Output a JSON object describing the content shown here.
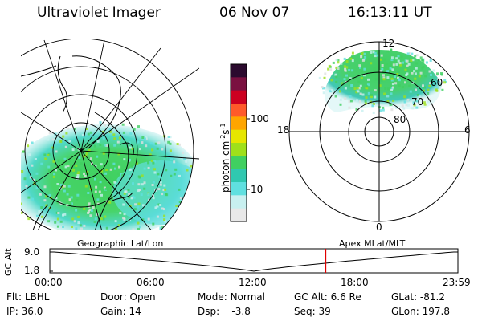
{
  "header": {
    "instrument": "Ultraviolet Imager",
    "date": "06 Nov 07",
    "time": "16:13:11 UT"
  },
  "colorbar": {
    "unit_label": "photon cm",
    "unit_sup1": "-2",
    "unit_mid": "s",
    "unit_sup2": "-1",
    "ticks": [
      "100",
      "10"
    ],
    "colors": [
      "#2b0a2e",
      "#7a1040",
      "#cc0020",
      "#ff5a2a",
      "#ffa500",
      "#e6e600",
      "#9fe01a",
      "#40d060",
      "#30c8b0",
      "#60e0e0",
      "#c8f0f0",
      "#e8e8e8"
    ]
  },
  "polar_plot": {
    "mlt_labels": {
      "top": "12",
      "left": "18",
      "right": "6",
      "bottom": "0"
    },
    "lat_labels": [
      "60",
      "70",
      "80"
    ]
  },
  "timeline": {
    "y_axis_label": "GC Alt",
    "y_ticks": [
      "9.0",
      "1.8"
    ],
    "left_caption": "Geographic Lat/Lon",
    "right_caption": "Apex MLat/MLT",
    "x_ticks": [
      "00:00",
      "06:00",
      "12:00",
      "18:00",
      "23:59"
    ],
    "current_time_fraction": 0.676
  },
  "footer": {
    "row1": [
      {
        "label": "Flt:",
        "value": "LBHL"
      },
      {
        "label": "Door:",
        "value": "Open"
      },
      {
        "label": "Mode:",
        "value": "Normal"
      },
      {
        "label": "GC Alt:",
        "value": "6.6 Re"
      },
      {
        "label": "GLat:",
        "value": "-81.2"
      }
    ],
    "row2": [
      {
        "label": "IP:",
        "value": "36.0"
      },
      {
        "label": "Gain:",
        "value": "14"
      },
      {
        "label": "Dsp:",
        "value": "-3.8"
      },
      {
        "label": "Seq:",
        "value": "39"
      },
      {
        "label": "GLon:",
        "value": "197.8"
      }
    ]
  }
}
